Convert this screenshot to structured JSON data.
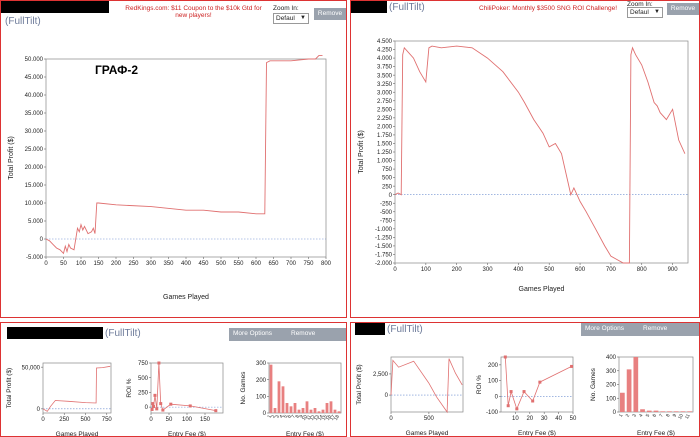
{
  "site_label": "(FullTilt)",
  "overlay_label": "ГРАФ-2",
  "zoom_label": "Zoom In:",
  "zoom_value": "Defaul",
  "remove_label": "Remove",
  "more_options_label": "More Options",
  "left_top": {
    "promo_line1": "RedKings.com: $11 Coupon to the $10k Gtd for",
    "promo_line2": "new players!"
  },
  "right_top": {
    "promo": "ChiliPoker: Monthly $3500 SNG ROI Challenge!"
  },
  "chart_data": [
    {
      "type": "line",
      "id": "left-main",
      "xlabel": "Games Played",
      "ylabel": "Total Profit ($)",
      "xlim": [
        0,
        800
      ],
      "ylim": [
        -5000,
        50000
      ],
      "xticks": [
        0,
        50,
        100,
        150,
        200,
        250,
        300,
        350,
        400,
        450,
        500,
        550,
        600,
        650,
        700,
        750,
        800
      ],
      "yticks": [
        -5000,
        0,
        5000,
        10000,
        15000,
        20000,
        25000,
        30000,
        35000,
        40000,
        45000,
        50000
      ],
      "ytick_labels": [
        "-5.000",
        "0",
        "5.000",
        "10.000",
        "15.000",
        "20.000",
        "25.000",
        "30.000",
        "35.000",
        "40.000",
        "45.000",
        "50.000"
      ],
      "x": [
        0,
        10,
        20,
        30,
        40,
        50,
        55,
        60,
        65,
        70,
        80,
        90,
        95,
        100,
        105,
        110,
        120,
        130,
        135,
        140,
        145,
        150,
        200,
        300,
        400,
        450,
        500,
        550,
        600,
        625,
        630,
        640,
        700,
        750,
        770,
        780,
        790
      ],
      "y": [
        0,
        -500,
        -1500,
        -2500,
        -3000,
        -4000,
        -2000,
        -3500,
        -1500,
        -2500,
        -3000,
        3000,
        2000,
        4000,
        2500,
        3500,
        1500,
        2000,
        3000,
        1500,
        10000,
        10000,
        9500,
        9000,
        8000,
        8000,
        7500,
        7500,
        7000,
        7000,
        49000,
        49500,
        49500,
        50000,
        50000,
        51000,
        51000
      ]
    },
    {
      "type": "line",
      "id": "right-main",
      "xlabel": "Games Played",
      "ylabel": "Total Profit ($)",
      "xlim": [
        0,
        950
      ],
      "ylim": [
        -2000,
        4500
      ],
      "xticks": [
        0,
        100,
        200,
        300,
        400,
        500,
        600,
        700,
        800,
        900
      ],
      "yticks": [
        -2000,
        -1750,
        -1500,
        -1250,
        -1000,
        -750,
        -500,
        -250,
        0,
        250,
        500,
        750,
        1000,
        1250,
        1500,
        1750,
        2000,
        2250,
        2500,
        2750,
        3000,
        3250,
        3500,
        3750,
        4000,
        4250,
        4500
      ],
      "ytick_labels": [
        "-2.000",
        "-1.750",
        "-1.500",
        "-1.250",
        "-1.000",
        "-750",
        "-500",
        "-250",
        "0",
        "250",
        "500",
        "750",
        "1.000",
        "1.250",
        "1.500",
        "1.750",
        "2.000",
        "2.250",
        "2.500",
        "2.750",
        "3.000",
        "3.250",
        "3.500",
        "3.750",
        "4.000",
        "4.250",
        "4.500"
      ],
      "x": [
        0,
        10,
        20,
        25,
        30,
        40,
        60,
        80,
        100,
        110,
        120,
        150,
        200,
        250,
        300,
        350,
        400,
        420,
        450,
        480,
        500,
        520,
        540,
        560,
        570,
        580,
        600,
        620,
        650,
        680,
        700,
        720,
        740,
        760,
        765,
        770,
        780,
        800,
        820,
        840,
        850,
        860,
        880,
        900,
        920,
        940
      ],
      "y": [
        0,
        50,
        0,
        4100,
        4300,
        4200,
        4000,
        3600,
        3300,
        4300,
        4350,
        4300,
        4350,
        4300,
        4000,
        3600,
        3000,
        2700,
        2200,
        1800,
        1400,
        1500,
        1200,
        400,
        0,
        200,
        -200,
        -500,
        -1000,
        -1500,
        -1800,
        -1900,
        -2000,
        -2000,
        4100,
        4300,
        4100,
        3800,
        3300,
        2700,
        2600,
        2400,
        2200,
        2500,
        1600,
        1200
      ]
    },
    {
      "type": "line",
      "id": "left-mini-profit",
      "xlabel": "Games Played",
      "ylabel": "Total Profit ($)",
      "xlim": [
        0,
        800
      ],
      "ylim": [
        -5000,
        55000
      ],
      "xticks": [
        0,
        250,
        500,
        750
      ],
      "yticks": [
        0,
        50000
      ],
      "ytick_labels": [
        "0",
        "50,000"
      ],
      "x": [
        0,
        50,
        90,
        145,
        300,
        500,
        625,
        630,
        700,
        790
      ],
      "y": [
        0,
        -3000,
        3000,
        10000,
        9000,
        7500,
        7000,
        49000,
        49500,
        51000
      ]
    },
    {
      "type": "line",
      "id": "left-mini-roi",
      "xlabel": "Entry Fee ($)",
      "ylabel": "ROI %",
      "xlim": [
        0,
        200
      ],
      "ylim": [
        -100,
        750
      ],
      "xticks": [
        0,
        50,
        100,
        150
      ],
      "yticks": [
        0,
        250,
        500,
        750
      ],
      "ytick_labels": [
        "0",
        "250",
        "500",
        "750"
      ],
      "x": [
        3,
        5,
        7,
        11,
        16,
        22,
        27,
        33,
        55,
        109,
        180
      ],
      "y": [
        -40,
        60,
        10,
        200,
        -30,
        750,
        60,
        -50,
        50,
        20,
        -60
      ]
    },
    {
      "type": "bar",
      "id": "left-mini-games",
      "xlabel": "Entry Fee ($)",
      "ylabel": "No. Games",
      "ylim": [
        0,
        300
      ],
      "yticks": [
        0,
        100,
        200,
        300
      ],
      "categories": [
        "1",
        "2",
        "3",
        "4",
        "5",
        "6",
        "7",
        "8",
        "9",
        "10",
        "11",
        "12",
        "13",
        "14",
        "15",
        "16",
        "17",
        "18"
      ],
      "values": [
        290,
        30,
        190,
        160,
        60,
        40,
        60,
        20,
        30,
        70,
        20,
        30,
        10,
        20,
        60,
        70,
        20,
        10
      ]
    },
    {
      "type": "line",
      "id": "right-mini-profit",
      "xlabel": "Games Played",
      "ylabel": "Total Profit ($)",
      "xlim": [
        0,
        950
      ],
      "ylim": [
        -2000,
        4500
      ],
      "xticks": [
        0,
        500
      ],
      "yticks": [
        0,
        2500
      ],
      "ytick_labels": [
        "0",
        "2,500"
      ],
      "x": [
        0,
        25,
        100,
        300,
        500,
        600,
        740,
        765,
        850,
        940
      ],
      "y": [
        0,
        4100,
        3300,
        4000,
        1400,
        -200,
        -2000,
        4300,
        2600,
        1200
      ]
    },
    {
      "type": "line",
      "id": "right-mini-roi",
      "xlabel": "Entry Fee ($)",
      "ylabel": "ROI %",
      "xlim": [
        0,
        50
      ],
      "ylim": [
        -100,
        250
      ],
      "xticks": [
        10,
        20,
        30,
        40,
        50
      ],
      "yticks": [
        -100,
        0,
        100,
        200
      ],
      "ytick_labels": [
        "-100",
        "0",
        "100",
        "200"
      ],
      "x": [
        3,
        5,
        7,
        11,
        16,
        22,
        27,
        49
      ],
      "y": [
        250,
        -60,
        30,
        -80,
        30,
        -30,
        90,
        190
      ]
    },
    {
      "type": "bar",
      "id": "right-mini-games",
      "xlabel": "Entry Fee ($)",
      "ylabel": "No. Games",
      "ylim": [
        0,
        400
      ],
      "yticks": [
        0,
        100,
        200,
        300,
        400
      ],
      "categories": [
        "1",
        "2",
        "3",
        "4",
        "5",
        "6",
        "7",
        "8",
        "9",
        "10",
        "11"
      ],
      "values": [
        140,
        310,
        400,
        20,
        10,
        10,
        5,
        5,
        5,
        5,
        5
      ]
    }
  ]
}
